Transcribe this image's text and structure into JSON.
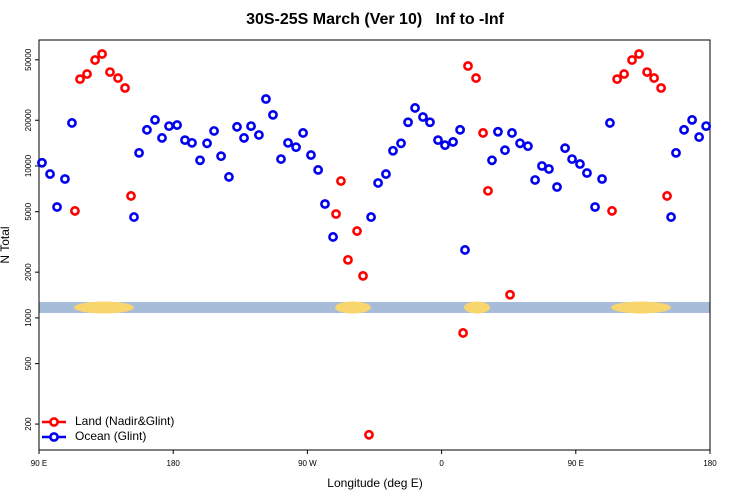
{
  "chart_data": {
    "type": "scatter",
    "title": "30S-25S March (Ver 10)   Inf to -Inf",
    "x_label": "Longitude (deg E)",
    "y_label": "N Total",
    "log_y": true,
    "grid": false,
    "legend": "bottom-left",
    "xlim": [
      90,
      540
    ],
    "ylim": [
      135,
      67500
    ],
    "xticks": [
      {
        "value": 90,
        "label": "90 E"
      },
      180,
      {
        "value": 270,
        "label": "90 W"
      },
      {
        "value": 360,
        "label": "0"
      },
      {
        "value": 450,
        "label": "90 E"
      },
      {
        "value": 540,
        "label": "180"
      }
    ],
    "yticks": [
      200,
      500,
      1000,
      2000,
      5000,
      10000,
      20000,
      50000
    ],
    "series": [
      {
        "name": "Land (Nadir&Glint)",
        "color": "#ff0000",
        "x": [
          114.1,
          117.5,
          122.2,
          127.6,
          132.3,
          137.6,
          143,
          147.7,
          151.7,
          289.2,
          292.5,
          297.2,
          303.3,
          307.3,
          311.3,
          374.4,
          377.7,
          383.1,
          387.8,
          391.1,
          405.9,
          474.3,
          477.7,
          482.4,
          487.7,
          492.4,
          497.8,
          502.5,
          507.2,
          511.2
        ],
        "values": [
          5060,
          37300,
          40300,
          49800,
          54600,
          41500,
          37900,
          32600,
          6350,
          4830,
          7960,
          2410,
          3730,
          1890,
          170,
          796,
          45500,
          37900,
          16500,
          6860,
          1420,
          5060,
          37300,
          40300,
          49800,
          54600,
          41500,
          37900,
          32600,
          6350
        ]
      },
      {
        "name": "Ocean (Glint)",
        "color": "#0000ee",
        "x": [
          92,
          97.4,
          102.1,
          107.4,
          112.1,
          153.7,
          157.1,
          162.4,
          167.8,
          172.5,
          177.2,
          182.6,
          187.9,
          192.6,
          198,
          202.7,
          207.4,
          212.1,
          217.4,
          222.8,
          227.5,
          232.2,
          237.5,
          242.2,
          246.9,
          252.3,
          257,
          262.4,
          267.1,
          272.4,
          277.2,
          281.8,
          287.2,
          312.7,
          317.4,
          322.7,
          327.4,
          332.8,
          337.5,
          342.2,
          347.5,
          352.2,
          357.6,
          362.3,
          367.7,
          372.4,
          375.7,
          393.8,
          397.8,
          402.5,
          407.2,
          412.6,
          417.9,
          422.7,
          427.3,
          432,
          437.4,
          442.8,
          447.5,
          452.8,
          457.5,
          462.9,
          467.6,
          472.9,
          513.9,
          517.2,
          522.6,
          528,
          532.7,
          537.4
        ],
        "values": [
          10500,
          8850,
          5370,
          8210,
          19200,
          4610,
          12200,
          17300,
          20100,
          15300,
          18300,
          18600,
          14800,
          14200,
          10900,
          14100,
          17000,
          11600,
          8470,
          18100,
          15300,
          18300,
          16000,
          27600,
          21700,
          11100,
          14200,
          13300,
          16500,
          11800,
          9420,
          5620,
          3410,
          4610,
          7730,
          8850,
          12600,
          14100,
          19400,
          24100,
          21000,
          19400,
          14800,
          13700,
          14400,
          17300,
          2800,
          10900,
          16800,
          12700,
          16500,
          14100,
          13500,
          8090,
          10000,
          9550,
          7270,
          13100,
          11100,
          10300,
          8990,
          5370,
          8210,
          19200,
          4610,
          12200,
          17300,
          20100,
          15500,
          18300
        ]
      }
    ]
  }
}
